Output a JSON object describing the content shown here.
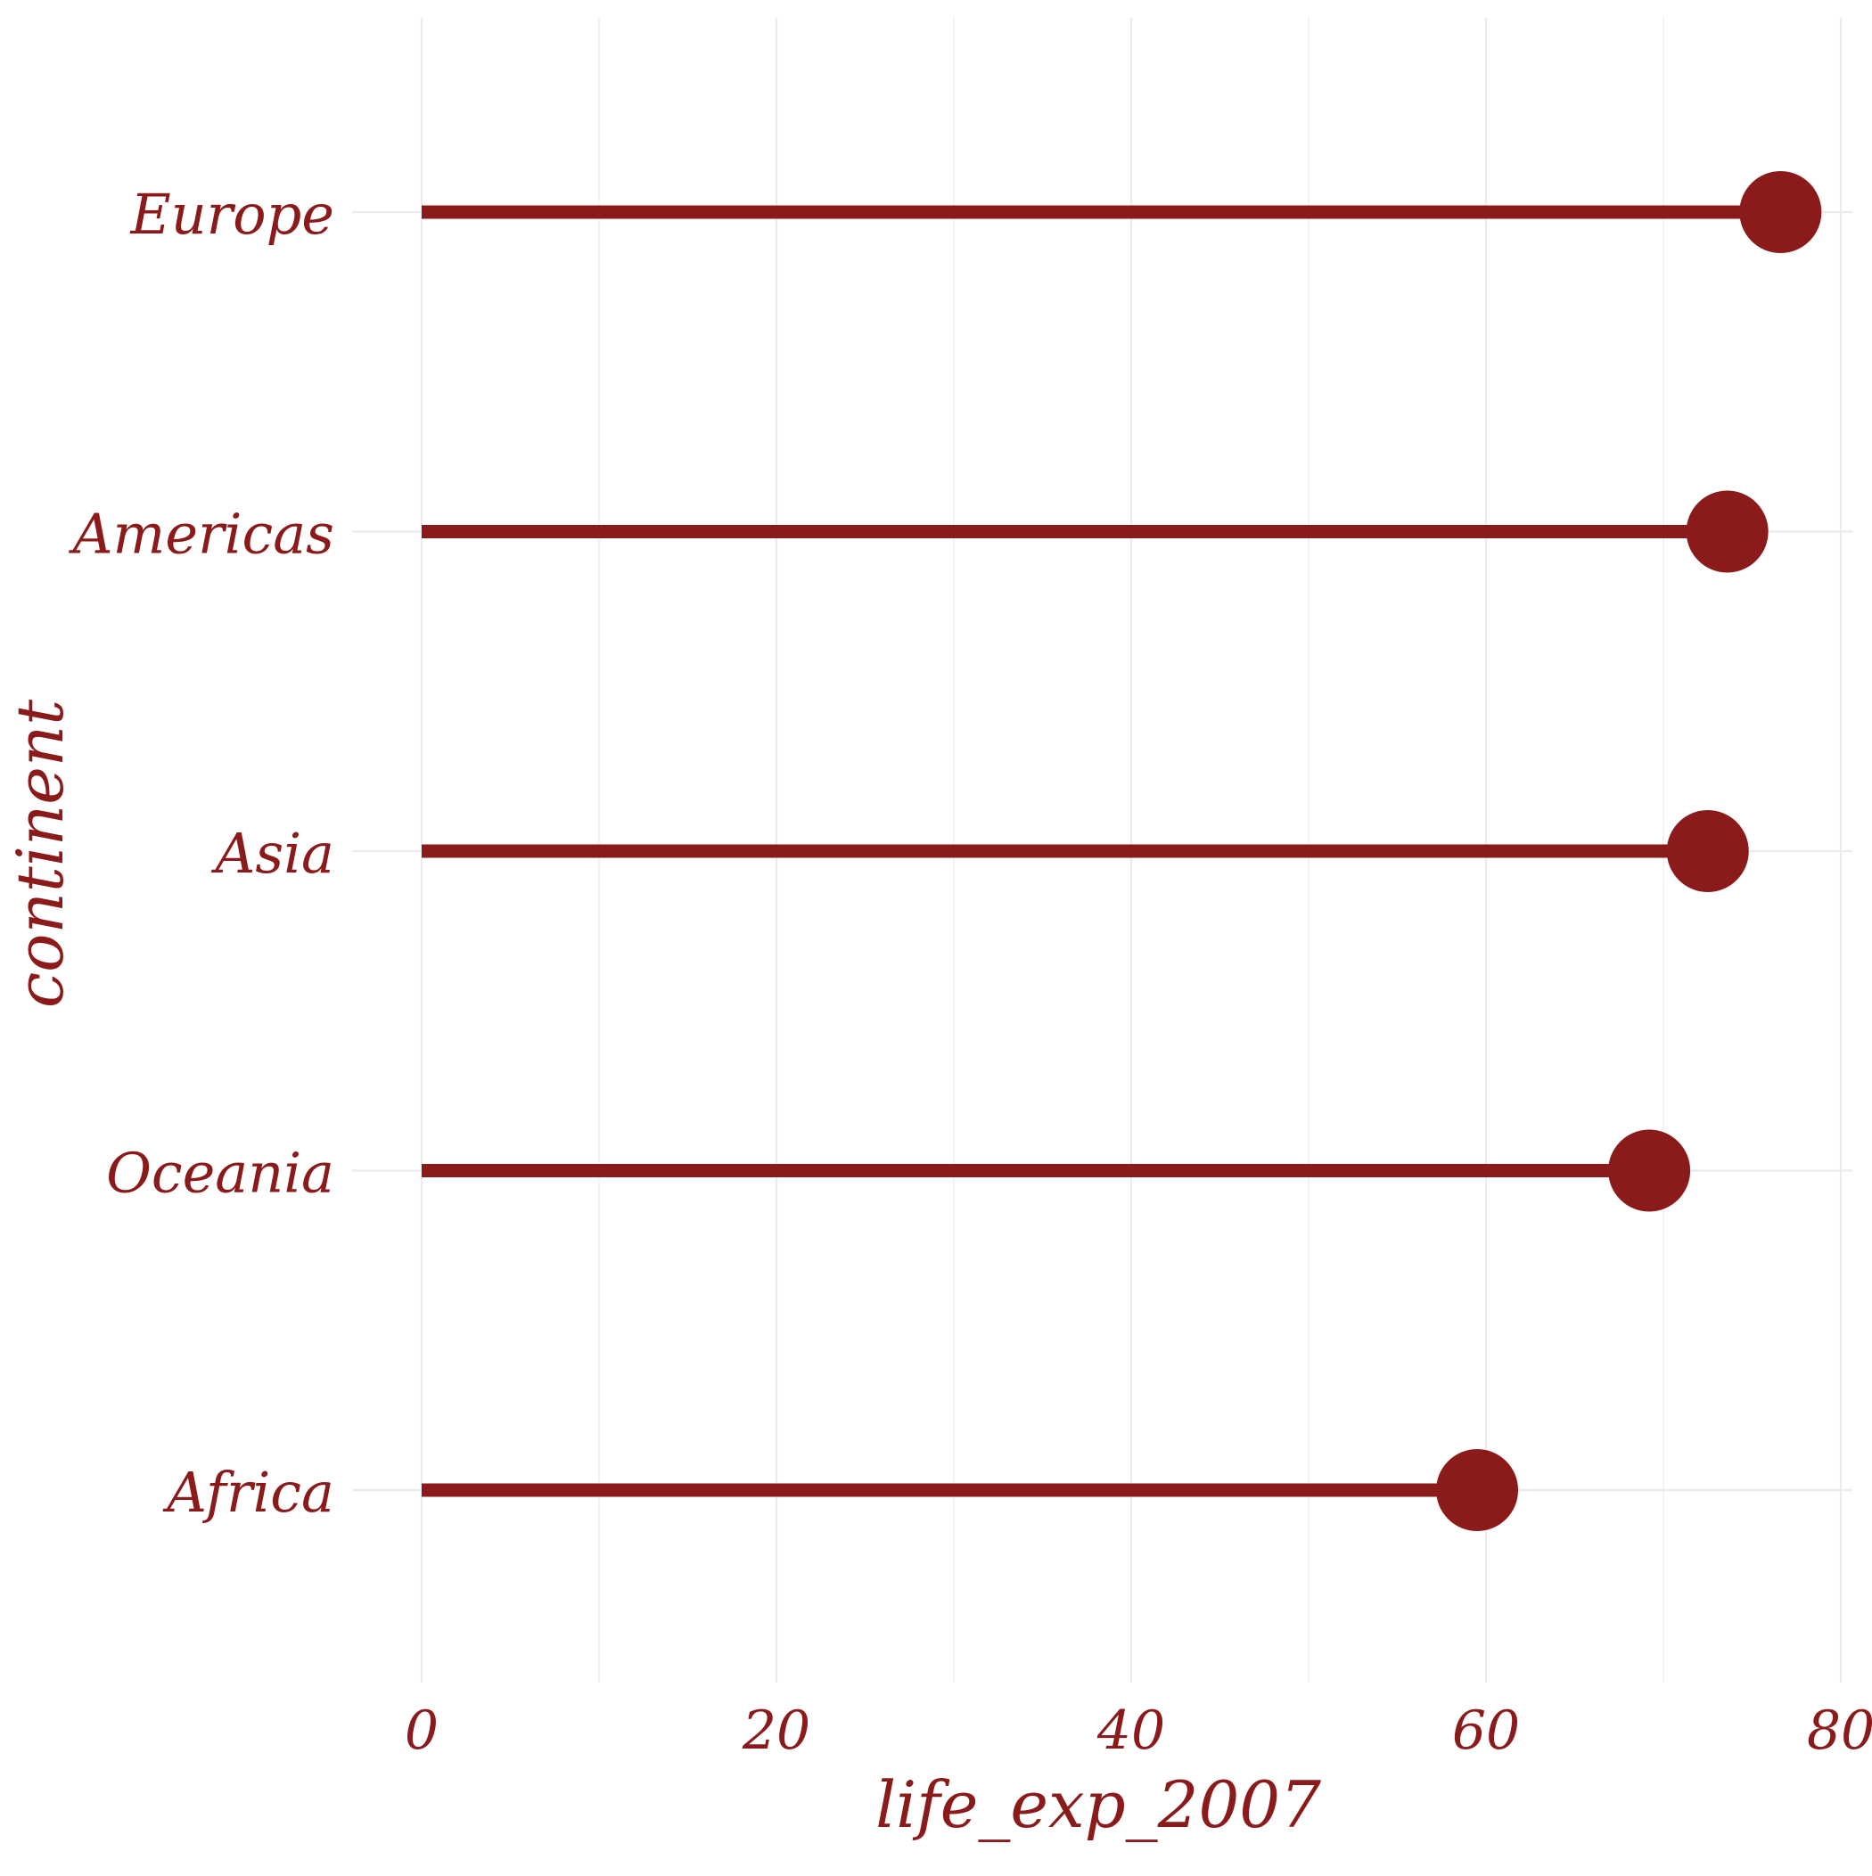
{
  "chart_data": {
    "type": "lollipop",
    "orientation": "horizontal",
    "categories": [
      "Africa",
      "Oceania",
      "Asia",
      "Americas",
      "Europe"
    ],
    "values": [
      59.5,
      69.2,
      72.5,
      73.6,
      76.6
    ],
    "xlabel": "life_exp_2007",
    "ylabel": "continent",
    "xlim": [
      0,
      80
    ],
    "x_ticks": [
      0,
      20,
      40,
      60,
      80
    ],
    "x_tick_labels": [
      "0",
      "20",
      "40",
      "60",
      "80"
    ],
    "grid": true,
    "color": "#8b1a1a",
    "grid_color": "#ebebeb",
    "text_color": "#8b1a1a",
    "background": "#ffffff"
  }
}
